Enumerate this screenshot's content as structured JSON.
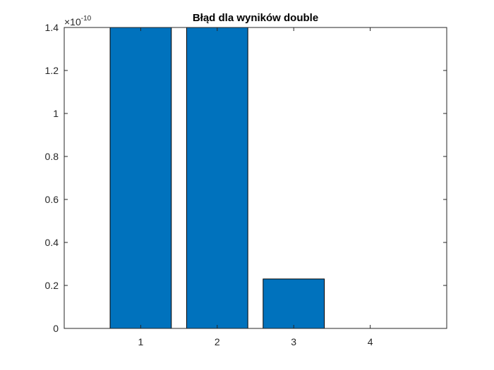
{
  "chart_data": {
    "type": "bar",
    "title": "Błąd dla wyników double",
    "categories": [
      "1",
      "2",
      "3",
      "4"
    ],
    "values": [
      1.4e-10,
      1.4e-10,
      2.3e-11,
      0
    ],
    "xlim": [
      0,
      5
    ],
    "ylim": [
      0,
      1.4e-10
    ],
    "y_ticks": [
      "0",
      "0.2",
      "0.4",
      "0.6",
      "0.8",
      "1",
      "1.2",
      "1.4"
    ],
    "y_exponent_base": "×10",
    "y_exponent_power": "-10",
    "grid": false,
    "legend": "none",
    "bar_color": "#0072BD",
    "bar_edge_color": "#000000"
  }
}
